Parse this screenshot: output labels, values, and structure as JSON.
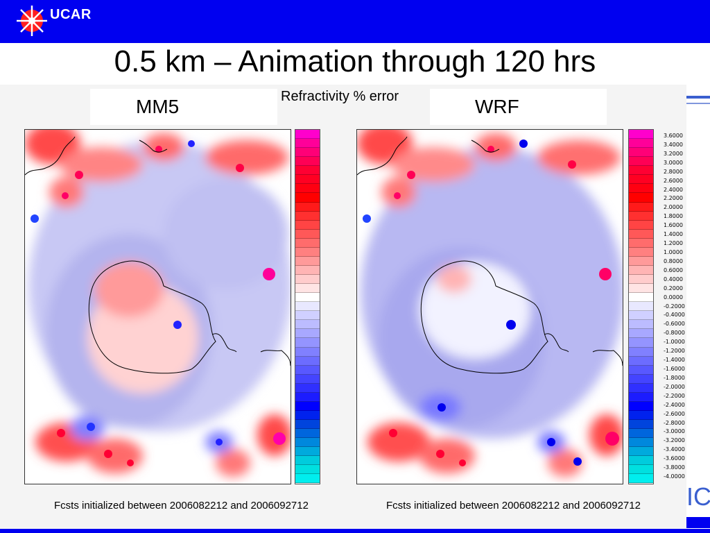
{
  "header": {
    "logo_text": "UCAR"
  },
  "title": "0.5 km – Animation through 120 hrs",
  "center_label": "Refractivity % error",
  "panels": [
    {
      "label": "MM5",
      "caption": "Fcsts initialized between 2006082212 and 2006092712"
    },
    {
      "label": "WRF",
      "caption": "Fcsts initialized between 2006082212 and 2006092712"
    }
  ],
  "colorbar": {
    "tick_labels": [
      "3.6000",
      "3.4000",
      "3.2000",
      "3.0000",
      "2.8000",
      "2.6000",
      "2.4000",
      "2.2000",
      "2.0000",
      "1.8000",
      "1.6000",
      "1.4000",
      "1.2000",
      "1.0000",
      "0.8000",
      "0.6000",
      "0.4000",
      "0.2000",
      "0.0000",
      "-0.2000",
      "-0.4000",
      "-0.6000",
      "-0.8000",
      "-1.0000",
      "-1.2000",
      "-1.4000",
      "-1.6000",
      "-1.8000",
      "-2.0000",
      "-2.2000",
      "-2.4000",
      "-2.6000",
      "-2.8000",
      "-3.0000",
      "-3.2000",
      "-3.4000",
      "-3.6000",
      "-3.8000",
      "-4.0000"
    ],
    "colors": [
      "#ff00cc",
      "#ff0099",
      "#ff0077",
      "#ff0055",
      "#ff0033",
      "#ff0022",
      "#ff0011",
      "#ff0000",
      "#ff1a1a",
      "#ff3030",
      "#ff4444",
      "#ff5858",
      "#ff6c6c",
      "#ff8080",
      "#ff9a9a",
      "#ffb4b4",
      "#ffcccc",
      "#ffe4e4",
      "#ffffff",
      "#e8e8ff",
      "#d0d0ff",
      "#bcbcff",
      "#a8a8ff",
      "#9494ff",
      "#8080ff",
      "#6c6cff",
      "#5858ff",
      "#4444ff",
      "#3030ff",
      "#1c1cff",
      "#0000ff",
      "#0022ee",
      "#0044dd",
      "#0066dd",
      "#0088dd",
      "#00aadd",
      "#00ccdd",
      "#00e0e0",
      "#00eeee"
    ]
  },
  "right_fragment": "IC"
}
